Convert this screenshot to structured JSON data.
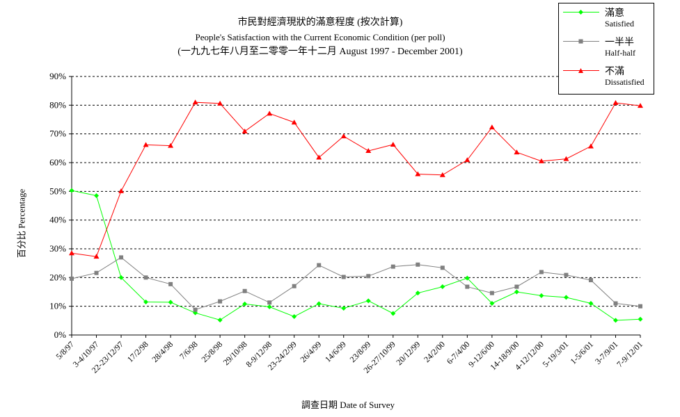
{
  "chart_data": {
    "type": "line",
    "title": "市民對經濟現狀的滿意程度 (按次計算)",
    "subtitle": "People's Satisfaction with the Current Economic Condition  (per poll)",
    "subtitle2": "(一九九七年八月至二零零一年十二月 August 1997 - December 2001)",
    "xlabel": "調查日期 Date of Survey",
    "ylabel": "百分比 Percentage",
    "ylim": [
      0,
      90
    ],
    "yticks": [
      "0%",
      "10%",
      "20%",
      "30%",
      "40%",
      "50%",
      "60%",
      "70%",
      "80%",
      "90%"
    ],
    "grid": "horizontal dashed",
    "legend_position": "top-right",
    "categories": [
      "5/8/97",
      "3-4/10/97",
      "22-23/12/97",
      "17/2/98",
      "28/4/98",
      "7/6/98",
      "25/8/98",
      "29/10/98",
      "8-9/12/98",
      "23-24/2/99",
      "26/4/99",
      "14/6/99",
      "23/8/99",
      "26-27/10/99",
      "20/12/99",
      "24/2/00",
      "6-7/4/00",
      "9-12/6/00",
      "14-18/9/00",
      "4-12/12/00",
      "5-19/3/01",
      "1-5/6/01",
      "3-7/9/01",
      "7-9/12/01"
    ],
    "series": [
      {
        "name": "滿意",
        "name_en": "Satisfied",
        "color": "#00ff00",
        "marker": "diamond",
        "values": [
          50.3,
          48.5,
          20.0,
          11.5,
          11.4,
          7.7,
          5.2,
          10.8,
          9.8,
          6.4,
          10.9,
          9.3,
          11.9,
          7.5,
          14.6,
          16.8,
          19.8,
          11.0,
          15.0,
          13.7,
          13.1,
          11.0,
          5.1,
          5.5
        ]
      },
      {
        "name": "一半半",
        "name_en": "Half-half",
        "color": "#808080",
        "marker": "square",
        "values": [
          19.6,
          21.6,
          27.0,
          20.0,
          17.7,
          8.8,
          11.7,
          15.3,
          11.3,
          17.0,
          24.3,
          20.2,
          20.5,
          23.8,
          24.5,
          23.4,
          16.8,
          14.6,
          16.8,
          21.9,
          20.9,
          19.1,
          11.0,
          10.0
        ]
      },
      {
        "name": "不滿",
        "name_en": "Dissatisfied",
        "color": "#ff0000",
        "marker": "triangle",
        "values": [
          28.5,
          27.3,
          50.1,
          66.2,
          65.9,
          81.0,
          80.6,
          70.9,
          77.1,
          74.0,
          61.8,
          69.2,
          64.1,
          66.3,
          56.0,
          55.7,
          60.9,
          72.3,
          63.6,
          60.5,
          61.3,
          65.7,
          80.8,
          79.8
        ]
      }
    ]
  }
}
